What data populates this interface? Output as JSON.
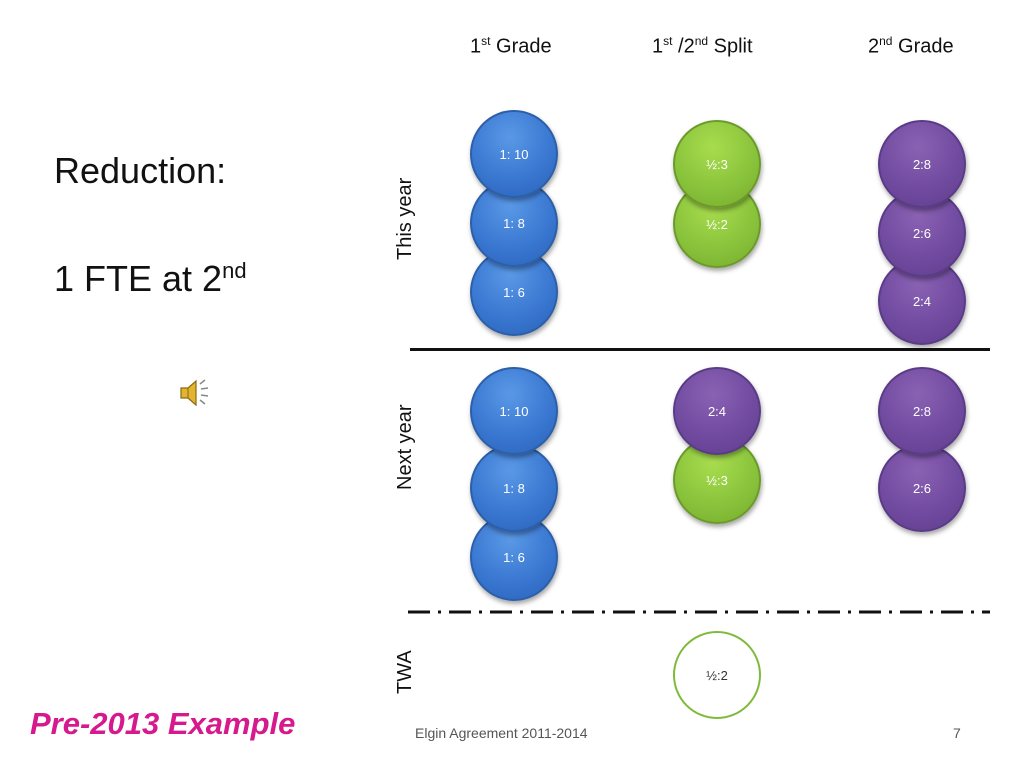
{
  "columns": [
    {
      "base": "1",
      "sup": "st",
      "text": " Grade"
    },
    {
      "base1": "1",
      "sup1": "st",
      "mid": " /2",
      "sup2": "nd",
      "text": " Split"
    },
    {
      "base": "2",
      "sup": "nd",
      "text": " Grade"
    }
  ],
  "title": {
    "line1": "Reduction:",
    "line2_base": "1 FTE at 2",
    "line2_sup": "nd"
  },
  "row_labels": {
    "this_year": "This year",
    "next_year": "Next year",
    "twa": "TWA"
  },
  "this_year": {
    "first_grade": [
      "1: 10",
      "1: 8",
      "1: 6"
    ],
    "split": [
      "½:3",
      "½:2"
    ],
    "second_grade": [
      "2:8",
      "2:6",
      "2:4"
    ]
  },
  "next_year": {
    "first_grade": [
      "1: 10",
      "1: 8",
      "1: 6"
    ],
    "split": [
      "2:4",
      "½:3"
    ],
    "second_grade": [
      "2:8",
      "2:6"
    ]
  },
  "twa": {
    "split": "½:2"
  },
  "footer": {
    "left": "Pre-2013 Example",
    "center": "Elgin Agreement 2011-2014",
    "page": "7"
  },
  "colors": {
    "blue": "#3a78d2",
    "green": "#8ac43c",
    "purple": "#714ba0",
    "footer_accent": "#d6198c"
  },
  "icons": {
    "audio": "speaker-icon"
  }
}
